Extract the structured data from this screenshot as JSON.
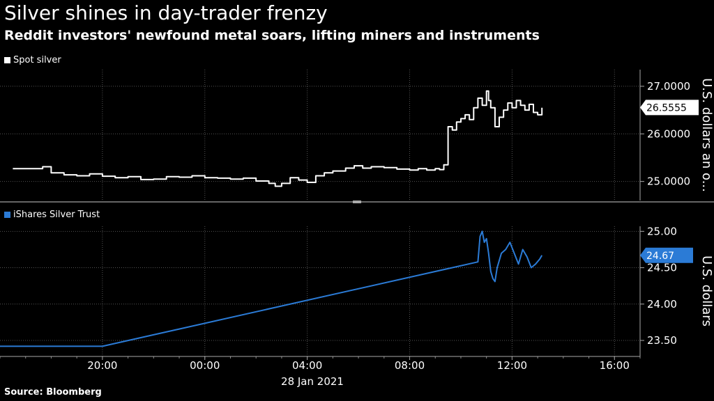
{
  "header": {
    "title": "Silver shines in day-trader frenzy",
    "subtitle": "Reddit investors' newfound metal soars, lifting miners and instruments"
  },
  "footer": {
    "source": "Source: Bloomberg"
  },
  "colors": {
    "background": "#000000",
    "spot_silver": "#ffffff",
    "slv": "#2b7bd6",
    "grid": "#555555"
  },
  "x_axis": {
    "tick_labels": [
      "20:00",
      "00:00",
      "04:00",
      "08:00",
      "12:00",
      "16:00"
    ],
    "date_label": "28 Jan 2021"
  },
  "chart_data": [
    {
      "type": "line",
      "legend": "Spot silver",
      "ylabel": "U.S. dollars an o...",
      "ylim": [
        24.6,
        27.35
      ],
      "yticks": [
        25.0,
        26.0,
        27.0
      ],
      "ytick_labels": [
        "25.0000",
        "26.0000",
        "27.0000"
      ],
      "last_value": 26.5555,
      "last_value_label": "26.5555",
      "grid": true,
      "series": [
        {
          "values": [
            [
              "16:30",
              25.27
            ],
            [
              "17:30",
              25.27
            ],
            [
              "17:40",
              25.31
            ],
            [
              "18:00",
              25.18
            ],
            [
              "18:30",
              25.14
            ],
            [
              "19:00",
              25.12
            ],
            [
              "19:30",
              25.16
            ],
            [
              "20:00",
              25.11
            ],
            [
              "20:30",
              25.08
            ],
            [
              "21:00",
              25.1
            ],
            [
              "21:30",
              25.04
            ],
            [
              "22:00",
              25.05
            ],
            [
              "22:30",
              25.1
            ],
            [
              "23:00",
              25.09
            ],
            [
              "23:30",
              25.12
            ],
            [
              "00:00",
              25.08
            ],
            [
              "00:30",
              25.07
            ],
            [
              "01:00",
              25.05
            ],
            [
              "01:30",
              25.07
            ],
            [
              "02:00",
              25.01
            ],
            [
              "02:30",
              24.96
            ],
            [
              "02:45",
              24.9
            ],
            [
              "03:00",
              24.96
            ],
            [
              "03:20",
              25.08
            ],
            [
              "03:40",
              25.03
            ],
            [
              "04:00",
              24.98
            ],
            [
              "04:20",
              25.12
            ],
            [
              "04:40",
              25.18
            ],
            [
              "05:00",
              25.22
            ],
            [
              "05:30",
              25.28
            ],
            [
              "05:50",
              25.33
            ],
            [
              "06:10",
              25.28
            ],
            [
              "06:30",
              25.31
            ],
            [
              "07:00",
              25.29
            ],
            [
              "07:30",
              25.26
            ],
            [
              "08:00",
              25.24
            ],
            [
              "08:20",
              25.27
            ],
            [
              "08:40",
              25.24
            ],
            [
              "09:00",
              25.27
            ],
            [
              "09:10",
              25.25
            ],
            [
              "09:20",
              25.35
            ],
            [
              "09:30",
              26.15
            ],
            [
              "09:40",
              26.08
            ],
            [
              "09:50",
              26.25
            ],
            [
              "10:00",
              26.32
            ],
            [
              "10:10",
              26.4
            ],
            [
              "10:20",
              26.3
            ],
            [
              "10:30",
              26.55
            ],
            [
              "10:40",
              26.75
            ],
            [
              "10:50",
              26.6
            ],
            [
              "11:00",
              26.9
            ],
            [
              "11:05",
              26.7
            ],
            [
              "11:10",
              26.55
            ],
            [
              "11:20",
              26.15
            ],
            [
              "11:30",
              26.35
            ],
            [
              "11:40",
              26.5
            ],
            [
              "11:50",
              26.65
            ],
            [
              "12:00",
              26.55
            ],
            [
              "12:10",
              26.7
            ],
            [
              "12:20",
              26.6
            ],
            [
              "12:30",
              26.5
            ],
            [
              "12:40",
              26.62
            ],
            [
              "12:50",
              26.45
            ],
            [
              "13:00",
              26.4
            ],
            [
              "13:10",
              26.55
            ]
          ]
        }
      ]
    },
    {
      "type": "line",
      "legend": "iShares Silver Trust",
      "ylabel": "U.S. dollars",
      "ylim": [
        23.28,
        25.07
      ],
      "yticks": [
        23.5,
        24.0,
        24.5,
        25.0
      ],
      "ytick_labels": [
        "23.50",
        "24.00",
        "24.50",
        "25.00"
      ],
      "last_value": 24.67,
      "last_value_label": "24.67",
      "grid": true,
      "series": [
        {
          "values": [
            [
              "16:00",
              23.42
            ],
            [
              "20:00",
              23.42
            ],
            [
              "10:40",
              24.58
            ],
            [
              "10:45",
              24.93
            ],
            [
              "10:50",
              25.0
            ],
            [
              "10:55",
              24.85
            ],
            [
              "11:00",
              24.9
            ],
            [
              "11:05",
              24.7
            ],
            [
              "11:10",
              24.45
            ],
            [
              "11:15",
              24.35
            ],
            [
              "11:20",
              24.31
            ],
            [
              "11:25",
              24.5
            ],
            [
              "11:35",
              24.7
            ],
            [
              "11:45",
              24.75
            ],
            [
              "11:55",
              24.85
            ],
            [
              "12:05",
              24.7
            ],
            [
              "12:15",
              24.55
            ],
            [
              "12:25",
              24.75
            ],
            [
              "12:35",
              24.65
            ],
            [
              "12:45",
              24.5
            ],
            [
              "12:55",
              24.55
            ],
            [
              "13:05",
              24.62
            ],
            [
              "13:10",
              24.67
            ]
          ]
        }
      ]
    }
  ]
}
